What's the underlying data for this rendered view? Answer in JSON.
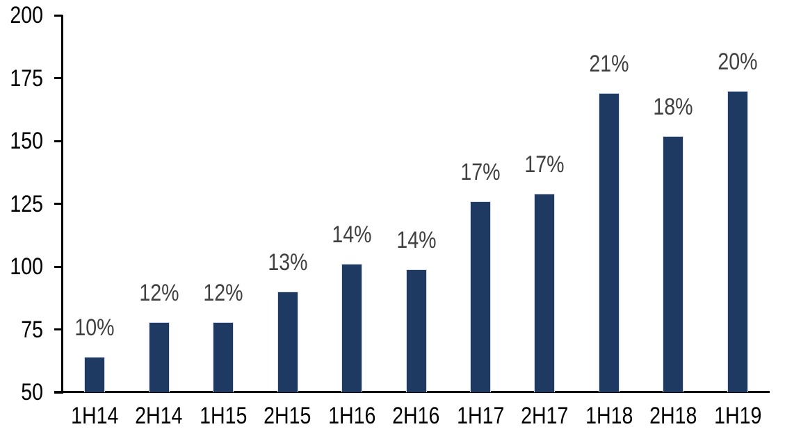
{
  "chart_data": {
    "type": "bar",
    "title": "",
    "xlabel": "",
    "ylabel": "",
    "categories": [
      "1H14",
      "2H14",
      "1H15",
      "2H15",
      "1H16",
      "2H16",
      "1H17",
      "2H17",
      "1H18",
      "2H18",
      "1H19"
    ],
    "values": [
      64,
      78,
      78,
      90,
      101,
      99,
      126,
      129,
      169,
      152,
      170
    ],
    "data_labels": [
      "10%",
      "12%",
      "12%",
      "13%",
      "14%",
      "14%",
      "17%",
      "17%",
      "21%",
      "18%",
      "20%"
    ],
    "ylim": [
      50,
      200
    ],
    "yticks": [
      50,
      75,
      100,
      125,
      150,
      175,
      200
    ],
    "grid": false,
    "legend": false,
    "colors": {
      "bar_fill": "#1F3A62",
      "bar_border": "#D9DEE8",
      "axis": "#000000",
      "axis_tick_label": "#000000",
      "data_label": "#404040",
      "background": "#FFFFFF"
    }
  }
}
